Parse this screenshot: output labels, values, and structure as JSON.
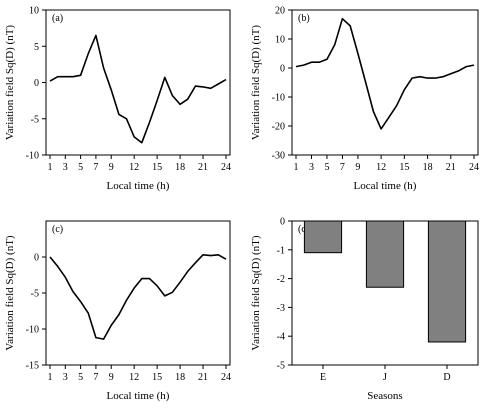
{
  "chart_data": [
    {
      "type": "line",
      "panel": "(a)",
      "xlabel": "Local time (h)",
      "ylabel": "Variation field Sq(D) (nT)",
      "ylim": [
        -10,
        10
      ],
      "yticks": [
        10,
        5,
        0,
        -5,
        -10
      ],
      "xlim": [
        1,
        24
      ],
      "xticks": [
        1,
        3,
        5,
        7,
        9,
        12,
        15,
        18,
        21,
        24
      ],
      "x": [
        1,
        2,
        3,
        4,
        5,
        6,
        7,
        8,
        9,
        10,
        11,
        12,
        13,
        14,
        15,
        16,
        17,
        18,
        19,
        20,
        21,
        22,
        23,
        24
      ],
      "values": [
        0.2,
        0.8,
        0.8,
        0.8,
        1.0,
        4.0,
        6.5,
        2.0,
        -1.0,
        -4.4,
        -5.0,
        -7.5,
        -8.3,
        -5.5,
        -2.5,
        0.7,
        -1.8,
        -3.0,
        -2.3,
        -0.5,
        -0.6,
        -0.8,
        -0.2,
        0.4
      ]
    },
    {
      "type": "line",
      "panel": "(b)",
      "xlabel": "Local time (h)",
      "ylabel": "Variation field Sq(D) (nT)",
      "ylim": [
        -30,
        20
      ],
      "yticks": [
        20,
        10,
        0,
        -10,
        -20,
        -30
      ],
      "xlim": [
        1,
        24
      ],
      "xticks": [
        1,
        3,
        5,
        7,
        9,
        12,
        15,
        18,
        21,
        24
      ],
      "x": [
        1,
        2,
        3,
        4,
        5,
        6,
        7,
        8,
        9,
        10,
        11,
        12,
        13,
        14,
        15,
        16,
        17,
        18,
        19,
        20,
        21,
        22,
        23,
        24
      ],
      "values": [
        0.5,
        1.0,
        2.0,
        2.0,
        3.0,
        8.0,
        17.0,
        14.5,
        5.0,
        -5.0,
        -15.0,
        -21.0,
        -17.0,
        -13.0,
        -7.5,
        -3.5,
        -3.0,
        -3.5,
        -3.5,
        -3.0,
        -2.0,
        -1.0,
        0.5,
        1.0
      ]
    },
    {
      "type": "line",
      "panel": "(c)",
      "xlabel": "Local time (h)",
      "ylabel": "Variation field Sq(D) (nT)",
      "ylim": [
        -15,
        5
      ],
      "yticks": [
        0,
        -5,
        -10,
        -15
      ],
      "xlim": [
        1,
        24
      ],
      "xticks": [
        1,
        3,
        5,
        7,
        9,
        12,
        15,
        18,
        21,
        24
      ],
      "x": [
        1,
        2,
        3,
        4,
        5,
        6,
        7,
        8,
        9,
        10,
        11,
        12,
        13,
        14,
        15,
        16,
        17,
        18,
        19,
        20,
        21,
        22,
        23,
        24
      ],
      "values": [
        0.0,
        -1.3,
        -2.8,
        -4.8,
        -6.2,
        -7.8,
        -11.2,
        -11.4,
        -9.5,
        -8.0,
        -6.0,
        -4.3,
        -3.0,
        -3.0,
        -4.0,
        -5.4,
        -4.9,
        -3.5,
        -2.0,
        -0.8,
        0.3,
        0.2,
        0.3,
        -0.3
      ]
    },
    {
      "type": "bar",
      "panel": "(d)",
      "xlabel": "Seasons",
      "ylabel": "Variation field Sq(D) (nT)",
      "ylim": [
        -5,
        0
      ],
      "yticks": [
        0,
        -1,
        -2,
        -3,
        -4,
        -5
      ],
      "categories": [
        "E",
        "J",
        "D"
      ],
      "values": [
        -1.1,
        -2.3,
        -4.2
      ]
    }
  ]
}
